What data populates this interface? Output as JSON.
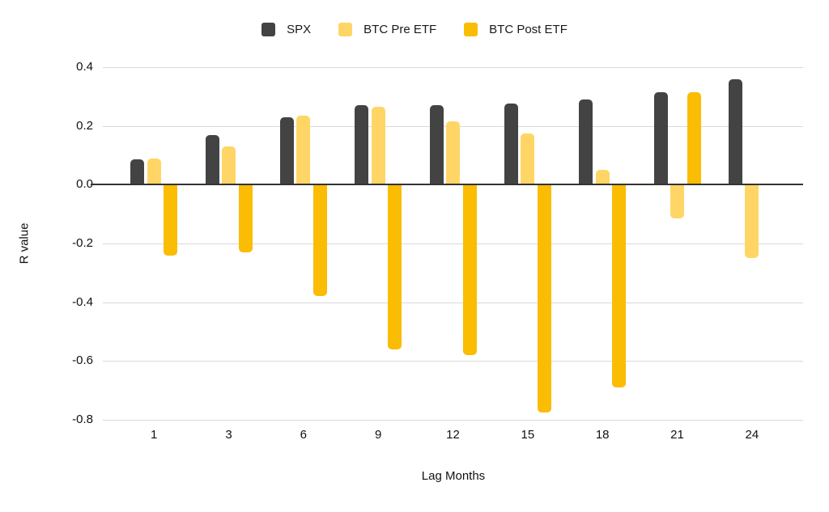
{
  "chart_data": {
    "type": "bar",
    "title": "",
    "xlabel": "Lag Months",
    "ylabel": "R value",
    "categories": [
      "1",
      "3",
      "6",
      "9",
      "12",
      "15",
      "18",
      "21",
      "24"
    ],
    "series": [
      {
        "name": "SPX",
        "color": "#434343",
        "values": [
          0.085,
          0.17,
          0.23,
          0.27,
          0.27,
          0.275,
          0.29,
          0.315,
          0.36
        ]
      },
      {
        "name": "BTC Pre ETF",
        "color": "#FFD666",
        "values": [
          0.09,
          0.13,
          0.235,
          0.265,
          0.215,
          0.175,
          0.05,
          -0.115,
          -0.25
        ]
      },
      {
        "name": "BTC Post ETF",
        "color": "#FBBC04",
        "values": [
          -0.24,
          -0.23,
          -0.38,
          -0.56,
          -0.58,
          -0.775,
          -0.69,
          0.315,
          null
        ]
      }
    ],
    "ylim": [
      -0.8,
      0.4
    ],
    "yticks": [
      "0.4",
      "0.2",
      "0.0",
      "-0.2",
      "-0.4",
      "-0.6",
      "-0.8"
    ],
    "grid": true,
    "legend_position": "top"
  }
}
